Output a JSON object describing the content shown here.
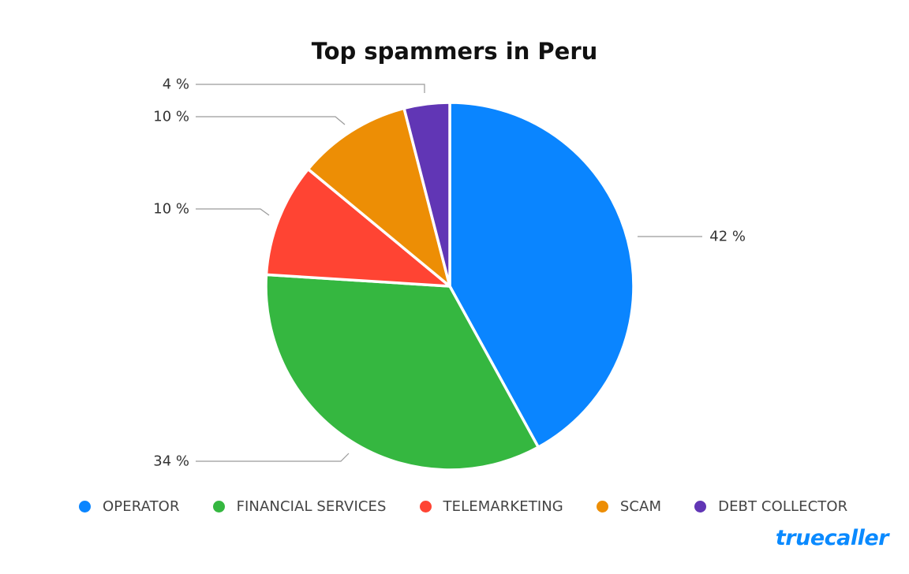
{
  "title": "Top spammers in Peru",
  "brand": "truecaller",
  "chart_data": {
    "type": "pie",
    "title": "Top spammers in Peru",
    "legend_position": "bottom",
    "slices": [
      {
        "label": "OPERATOR",
        "value": 42,
        "display": "42 %",
        "color": "#0a85ff"
      },
      {
        "label": "FINANCIAL SERVICES",
        "value": 34,
        "display": "34 %",
        "color": "#35b740"
      },
      {
        "label": "TELEMARKETING",
        "value": 10,
        "display": "10 %",
        "color": "#ff4433"
      },
      {
        "label": "SCAM",
        "value": 10,
        "display": "10 %",
        "color": "#ed8e05"
      },
      {
        "label": "DEBT COLLECTOR",
        "value": 4,
        "display": "4 %",
        "color": "#6136b5"
      }
    ]
  }
}
